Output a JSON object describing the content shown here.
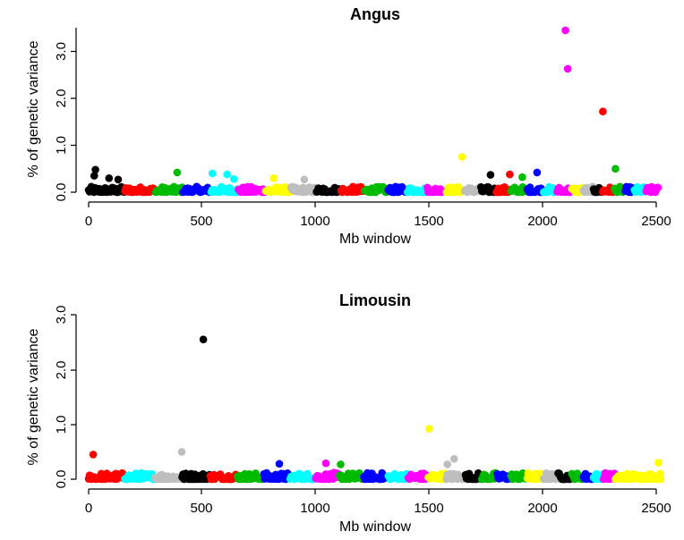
{
  "chart_data": [
    {
      "type": "scatter",
      "title": "Angus",
      "xlabel": "Mb window",
      "ylabel": "% of genetic variance",
      "xlim": [
        0,
        2540
      ],
      "ylim": [
        0,
        3.5
      ],
      "xticks": [
        0,
        500,
        1000,
        1500,
        2000,
        2500
      ],
      "yticks": [
        0,
        1,
        2,
        3
      ],
      "ytick_labels": [
        "0.0",
        "1.0",
        "2.0",
        "3.0"
      ],
      "grid": false,
      "legend": "none",
      "chromosome_colors": [
        "#000000",
        "#ff0000",
        "#00bb00",
        "#0000ff",
        "#00ffff",
        "#ff00ff",
        "#ffff00",
        "#bebebe"
      ],
      "chromosome_boundaries": [
        0,
        158,
        295,
        416,
        537,
        658,
        777,
        889,
        1002,
        1109,
        1213,
        1320,
        1404,
        1489,
        1574,
        1655,
        1727,
        1793,
        1857,
        1929,
        2001,
        2064,
        2125,
        2178,
        2221,
        2264,
        2315,
        2361,
        2403,
        2455,
        2510
      ],
      "baseline_range": [
        0.0,
        0.12
      ],
      "peaks": [
        {
          "x": 30,
          "y": 0.48
        },
        {
          "x": 25,
          "y": 0.35
        },
        {
          "x": 90,
          "y": 0.3
        },
        {
          "x": 130,
          "y": 0.27
        },
        {
          "x": 390,
          "y": 0.42
        },
        {
          "x": 545,
          "y": 0.4
        },
        {
          "x": 610,
          "y": 0.38
        },
        {
          "x": 640,
          "y": 0.28
        },
        {
          "x": 815,
          "y": 0.3
        },
        {
          "x": 950,
          "y": 0.27
        },
        {
          "x": 1645,
          "y": 0.75
        },
        {
          "x": 1770,
          "y": 0.37
        },
        {
          "x": 1855,
          "y": 0.38
        },
        {
          "x": 1910,
          "y": 0.32
        },
        {
          "x": 1975,
          "y": 0.42
        },
        {
          "x": 2100,
          "y": 3.45
        },
        {
          "x": 2110,
          "y": 2.63
        },
        {
          "x": 2265,
          "y": 1.72
        },
        {
          "x": 2320,
          "y": 0.5
        }
      ]
    },
    {
      "type": "scatter",
      "title": "Limousin",
      "xlabel": "Mb window",
      "ylabel": "% of genetic variance",
      "xlim": [
        0,
        2540
      ],
      "ylim": [
        0,
        3.0
      ],
      "xticks": [
        0,
        500,
        1000,
        1500,
        2000,
        2500
      ],
      "yticks": [
        0,
        1,
        2,
        3
      ],
      "ytick_labels": [
        "0.0",
        "1.0",
        "2.0",
        "3.0"
      ],
      "grid": false,
      "legend": "none",
      "chromosome_colors": [
        "#ff0000",
        "#00ffff",
        "#bebebe",
        "#000000",
        "#ff0000",
        "#00bb00",
        "#0000ff",
        "#00ffff",
        "#ff00ff",
        "#00bb00",
        "#0000ff",
        "#00ffff",
        "#ff00ff",
        "#ffff00",
        "#bebebe",
        "#000000",
        "#00bb00",
        "#0000ff",
        "#00bb00",
        "#ffff00",
        "#bebebe",
        "#000000",
        "#00bb00",
        "#0000ff",
        "#00ffff",
        "#ff00ff",
        "#ffff00"
      ],
      "chromosome_boundaries": [
        0,
        158,
        290,
        412,
        533,
        655,
        772,
        885,
        997,
        1102,
        1210,
        1318,
        1408,
        1493,
        1575,
        1660,
        1732,
        1797,
        1860,
        1930,
        2002,
        2067,
        2128,
        2180,
        2224,
        2268,
        2320,
        2520
      ],
      "baseline_range": [
        0.0,
        0.12
      ],
      "peaks": [
        {
          "x": 20,
          "y": 0.45
        },
        {
          "x": 410,
          "y": 0.5
        },
        {
          "x": 505,
          "y": 2.55
        },
        {
          "x": 840,
          "y": 0.28
        },
        {
          "x": 1045,
          "y": 0.29
        },
        {
          "x": 1110,
          "y": 0.27
        },
        {
          "x": 1500,
          "y": 0.92
        },
        {
          "x": 1580,
          "y": 0.27
        },
        {
          "x": 1610,
          "y": 0.37
        },
        {
          "x": 2510,
          "y": 0.3
        }
      ]
    }
  ]
}
